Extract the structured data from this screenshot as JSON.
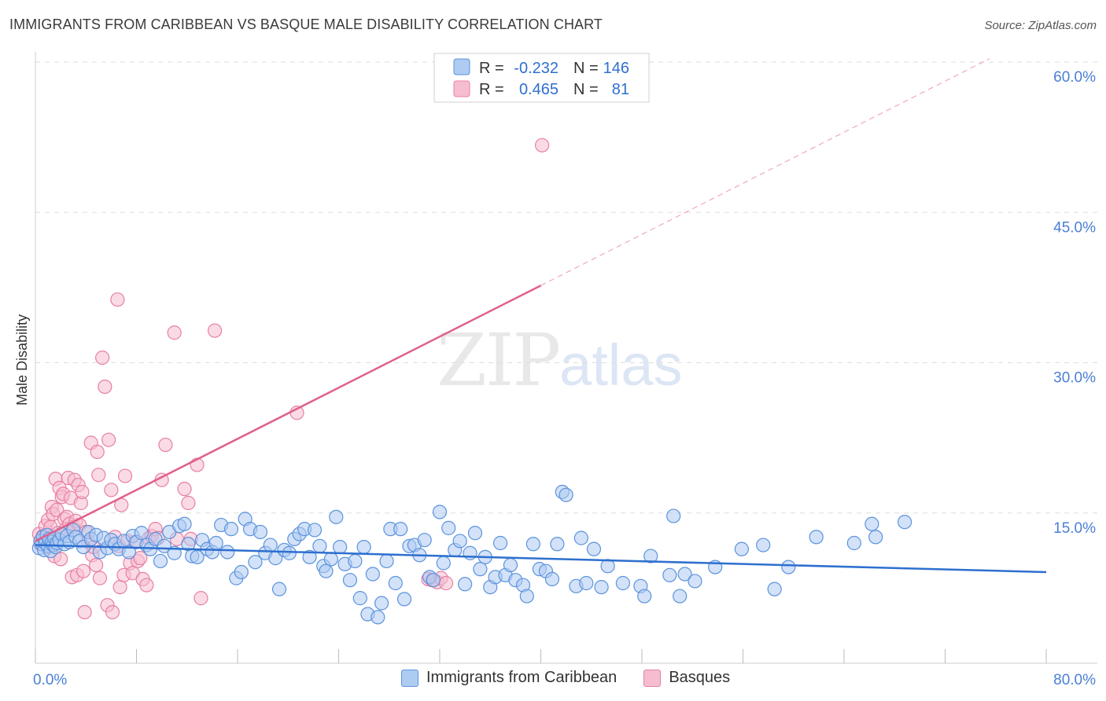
{
  "title": "IMMIGRANTS FROM CARIBBEAN VS BASQUE MALE DISABILITY CORRELATION CHART",
  "source": "Source: ZipAtlas.com",
  "watermark": {
    "zip": "ZIP",
    "atlas": "atlas"
  },
  "colors": {
    "caribbean_fill": "#aecbf2",
    "caribbean_stroke": "#5b93dd",
    "caribbean_line": "#2e6fcf",
    "basque_fill": "#f6bdd0",
    "basque_stroke": "#e87fa3",
    "basque_line": "#e0608c",
    "tick_text": "#4a7fd4",
    "grid": "#dddddd"
  },
  "legend": {
    "rows": [
      {
        "r_label": "R =",
        "r_value": "-0.232",
        "n_label": "N =",
        "n_value": "146"
      },
      {
        "r_label": "R =",
        "r_value": "0.465",
        "n_label": "N =",
        "n_value": "81"
      }
    ]
  },
  "bottom_legend": [
    "Immigrants from Caribbean",
    "Basques"
  ],
  "chart_data": {
    "type": "scatter",
    "ylabel": "Male Disability",
    "xlim": [
      0,
      80
    ],
    "ylim": [
      0,
      60
    ],
    "x_tick_labels": [
      {
        "value": 0,
        "label": "0.0%"
      },
      {
        "value": 80,
        "label": "80.0%"
      }
    ],
    "y_tick_labels": [
      {
        "value": 15,
        "label": "15.0%"
      },
      {
        "value": 30,
        "label": "30.0%"
      },
      {
        "value": 45,
        "label": "45.0%"
      },
      {
        "value": 60,
        "label": "60.0%"
      }
    ],
    "grid": "horizontal dashed",
    "series": [
      {
        "name": "Immigrants from Caribbean",
        "trend": {
          "x0": 0,
          "y0": 11.8,
          "x1": 80,
          "y1": 9.1
        },
        "points": [
          [
            0.3,
            11.5
          ],
          [
            0.4,
            12.2
          ],
          [
            0.5,
            11.9
          ],
          [
            0.6,
            12.6
          ],
          [
            0.7,
            11.3
          ],
          [
            0.8,
            12.0
          ],
          [
            0.9,
            12.8
          ],
          [
            1.0,
            11.7
          ],
          [
            1.1,
            12.4
          ],
          [
            1.2,
            11.2
          ],
          [
            1.3,
            12.1
          ],
          [
            1.4,
            11.8
          ],
          [
            1.5,
            12.5
          ],
          [
            1.6,
            11.6
          ],
          [
            1.7,
            12.0
          ],
          [
            1.9,
            12.3
          ],
          [
            2.1,
            12.9
          ],
          [
            2.3,
            11.9
          ],
          [
            2.5,
            12.7
          ],
          [
            2.7,
            12.1
          ],
          [
            3.0,
            13.3
          ],
          [
            3.2,
            12.6
          ],
          [
            3.5,
            12.2
          ],
          [
            3.8,
            11.6
          ],
          [
            4.2,
            13.1
          ],
          [
            4.4,
            12.4
          ],
          [
            4.8,
            12.8
          ],
          [
            5.1,
            11.1
          ],
          [
            5.4,
            12.5
          ],
          [
            5.7,
            11.5
          ],
          [
            6.0,
            12.3
          ],
          [
            6.3,
            11.9
          ],
          [
            6.6,
            11.4
          ],
          [
            7.0,
            12.2
          ],
          [
            7.4,
            11.1
          ],
          [
            7.7,
            12.7
          ],
          [
            8.0,
            12.1
          ],
          [
            8.4,
            13.0
          ],
          [
            8.8,
            11.8
          ],
          [
            9.1,
            11.4
          ],
          [
            9.5,
            12.4
          ],
          [
            9.9,
            10.2
          ],
          [
            10.2,
            11.7
          ],
          [
            10.6,
            13.1
          ],
          [
            11.0,
            11.0
          ],
          [
            11.4,
            13.7
          ],
          [
            11.8,
            13.9
          ],
          [
            12.1,
            11.9
          ],
          [
            12.4,
            10.7
          ],
          [
            12.8,
            10.6
          ],
          [
            13.2,
            12.3
          ],
          [
            13.6,
            11.4
          ],
          [
            14.0,
            11.1
          ],
          [
            14.3,
            12.0
          ],
          [
            14.7,
            13.8
          ],
          [
            15.2,
            11.1
          ],
          [
            15.5,
            13.4
          ],
          [
            15.9,
            8.5
          ],
          [
            16.3,
            9.1
          ],
          [
            16.6,
            14.4
          ],
          [
            17.0,
            13.4
          ],
          [
            17.4,
            10.1
          ],
          [
            17.8,
            13.1
          ],
          [
            18.2,
            11.0
          ],
          [
            18.6,
            11.8
          ],
          [
            19.0,
            10.5
          ],
          [
            19.3,
            7.4
          ],
          [
            19.7,
            11.3
          ],
          [
            20.1,
            11.0
          ],
          [
            20.5,
            12.4
          ],
          [
            20.9,
            12.9
          ],
          [
            21.3,
            13.4
          ],
          [
            21.7,
            10.6
          ],
          [
            22.1,
            13.3
          ],
          [
            22.5,
            11.7
          ],
          [
            22.8,
            9.7
          ],
          [
            23.0,
            9.2
          ],
          [
            23.4,
            10.4
          ],
          [
            23.8,
            14.6
          ],
          [
            24.1,
            11.6
          ],
          [
            24.5,
            9.9
          ],
          [
            24.9,
            8.3
          ],
          [
            25.3,
            10.2
          ],
          [
            25.7,
            6.5
          ],
          [
            26.0,
            11.6
          ],
          [
            26.3,
            4.9
          ],
          [
            26.7,
            8.9
          ],
          [
            27.1,
            4.6
          ],
          [
            27.4,
            6.0
          ],
          [
            27.8,
            10.2
          ],
          [
            28.1,
            13.4
          ],
          [
            28.5,
            8.0
          ],
          [
            28.9,
            13.4
          ],
          [
            29.2,
            6.4
          ],
          [
            29.6,
            11.7
          ],
          [
            30.0,
            11.8
          ],
          [
            30.4,
            10.8
          ],
          [
            30.8,
            12.3
          ],
          [
            31.2,
            8.6
          ],
          [
            31.5,
            8.3
          ],
          [
            32.0,
            15.1
          ],
          [
            32.3,
            10.0
          ],
          [
            32.7,
            13.5
          ],
          [
            33.2,
            11.3
          ],
          [
            33.6,
            12.2
          ],
          [
            34.0,
            7.9
          ],
          [
            34.4,
            11.0
          ],
          [
            34.8,
            13.0
          ],
          [
            35.2,
            9.4
          ],
          [
            35.6,
            10.6
          ],
          [
            36.0,
            7.6
          ],
          [
            36.4,
            8.6
          ],
          [
            36.8,
            12.0
          ],
          [
            37.2,
            8.8
          ],
          [
            37.6,
            9.8
          ],
          [
            38.0,
            8.3
          ],
          [
            38.6,
            7.8
          ],
          [
            38.9,
            6.7
          ],
          [
            39.4,
            11.9
          ],
          [
            39.9,
            9.4
          ],
          [
            40.4,
            9.2
          ],
          [
            40.9,
            8.4
          ],
          [
            41.3,
            11.9
          ],
          [
            41.7,
            17.1
          ],
          [
            42.0,
            16.8
          ],
          [
            42.8,
            7.7
          ],
          [
            43.2,
            12.5
          ],
          [
            43.6,
            8.0
          ],
          [
            44.2,
            11.4
          ],
          [
            44.8,
            7.6
          ],
          [
            45.3,
            9.7
          ],
          [
            46.5,
            8.0
          ],
          [
            47.9,
            7.7
          ],
          [
            48.2,
            6.7
          ],
          [
            48.7,
            10.7
          ],
          [
            50.2,
            8.8
          ],
          [
            50.5,
            14.7
          ],
          [
            51.0,
            6.7
          ],
          [
            51.4,
            8.9
          ],
          [
            52.2,
            8.2
          ],
          [
            53.8,
            9.6
          ],
          [
            55.9,
            11.4
          ],
          [
            57.6,
            11.8
          ],
          [
            58.5,
            7.4
          ],
          [
            59.6,
            9.6
          ],
          [
            61.8,
            12.6
          ],
          [
            64.8,
            12.0
          ],
          [
            66.2,
            13.9
          ],
          [
            66.5,
            12.6
          ],
          [
            68.8,
            14.1
          ]
        ]
      },
      {
        "name": "Basques",
        "trend": {
          "x0": 0,
          "y0": 12.2,
          "x1": 40,
          "y1": 37.7,
          "dash_to_x": 80,
          "dash_to_y": 63.2
        },
        "points": [
          [
            0.3,
            12.9
          ],
          [
            0.4,
            11.9
          ],
          [
            0.5,
            12.3
          ],
          [
            0.6,
            12.7
          ],
          [
            0.8,
            13.7
          ],
          [
            0.9,
            11.6
          ],
          [
            1.0,
            14.3
          ],
          [
            1.1,
            12.8
          ],
          [
            1.2,
            13.6
          ],
          [
            1.3,
            15.6
          ],
          [
            1.4,
            14.9
          ],
          [
            1.5,
            10.7
          ],
          [
            1.6,
            18.4
          ],
          [
            1.7,
            15.3
          ],
          [
            1.8,
            13.0
          ],
          [
            1.9,
            17.5
          ],
          [
            2.0,
            10.4
          ],
          [
            2.1,
            16.6
          ],
          [
            2.2,
            16.9
          ],
          [
            2.3,
            14.4
          ],
          [
            2.4,
            13.4
          ],
          [
            2.5,
            14.6
          ],
          [
            2.6,
            18.5
          ],
          [
            2.7,
            13.9
          ],
          [
            2.8,
            16.5
          ],
          [
            2.9,
            8.6
          ],
          [
            3.0,
            13.6
          ],
          [
            3.1,
            18.3
          ],
          [
            3.2,
            14.2
          ],
          [
            3.3,
            8.8
          ],
          [
            3.4,
            17.8
          ],
          [
            3.5,
            13.8
          ],
          [
            3.6,
            16.0
          ],
          [
            3.7,
            17.1
          ],
          [
            3.8,
            9.2
          ],
          [
            3.9,
            5.1
          ],
          [
            4.0,
            13.1
          ],
          [
            4.2,
            12.1
          ],
          [
            4.4,
            22.0
          ],
          [
            4.5,
            10.8
          ],
          [
            4.6,
            11.6
          ],
          [
            4.8,
            9.8
          ],
          [
            4.9,
            21.1
          ],
          [
            5.0,
            18.8
          ],
          [
            5.1,
            8.5
          ],
          [
            5.3,
            30.5
          ],
          [
            5.5,
            27.6
          ],
          [
            5.7,
            5.8
          ],
          [
            5.8,
            22.3
          ],
          [
            6.0,
            17.3
          ],
          [
            6.1,
            5.1
          ],
          [
            6.3,
            12.6
          ],
          [
            6.5,
            36.3
          ],
          [
            6.6,
            11.7
          ],
          [
            6.7,
            7.6
          ],
          [
            6.8,
            15.8
          ],
          [
            7.0,
            8.8
          ],
          [
            7.1,
            18.7
          ],
          [
            7.3,
            12.2
          ],
          [
            7.5,
            10.0
          ],
          [
            7.7,
            9.0
          ],
          [
            7.9,
            12.1
          ],
          [
            8.1,
            10.2
          ],
          [
            8.3,
            10.5
          ],
          [
            8.5,
            8.4
          ],
          [
            8.8,
            7.8
          ],
          [
            9.0,
            12.5
          ],
          [
            9.2,
            12.7
          ],
          [
            9.5,
            13.4
          ],
          [
            9.7,
            12.5
          ],
          [
            10.0,
            18.3
          ],
          [
            10.3,
            21.8
          ],
          [
            11.0,
            33.0
          ],
          [
            11.2,
            12.4
          ],
          [
            11.8,
            17.4
          ],
          [
            12.1,
            16.0
          ],
          [
            12.3,
            12.4
          ],
          [
            12.8,
            19.8
          ],
          [
            13.1,
            6.5
          ],
          [
            14.2,
            33.2
          ],
          [
            20.7,
            25.0
          ],
          [
            31.1,
            8.4
          ],
          [
            31.4,
            8.3
          ],
          [
            31.8,
            8.1
          ],
          [
            32.1,
            8.5
          ],
          [
            32.5,
            8.0
          ],
          [
            40.1,
            51.7
          ]
        ]
      }
    ]
  }
}
